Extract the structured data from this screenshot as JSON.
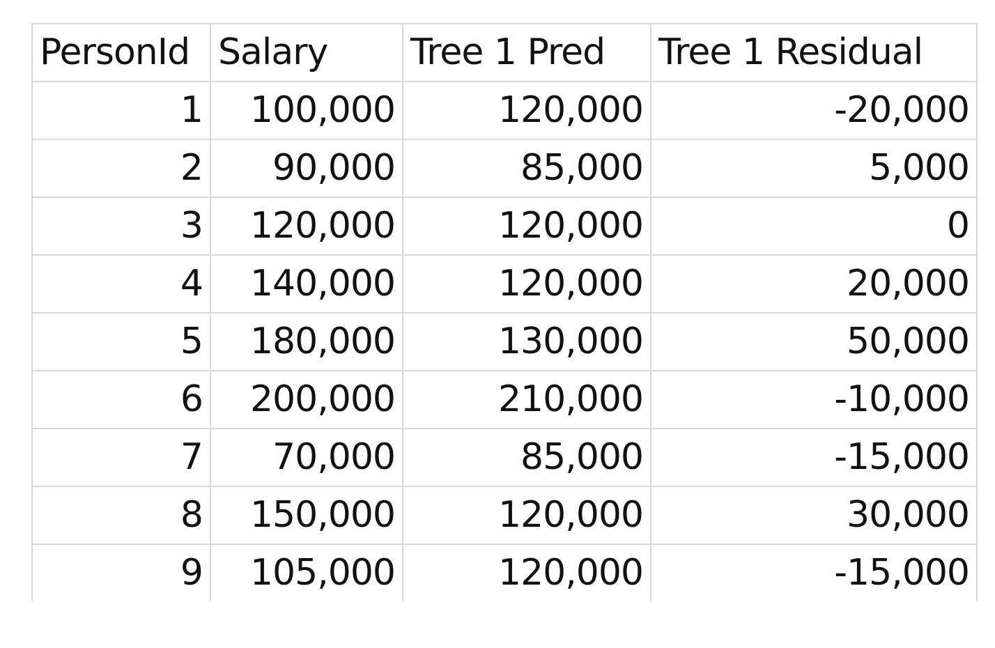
{
  "table": {
    "headers": [
      "PersonId",
      "Salary",
      "Tree 1 Pred",
      "Tree 1 Residual"
    ],
    "rows": [
      [
        "1",
        "100,000",
        "120,000",
        "-20,000"
      ],
      [
        "2",
        "90,000",
        "85,000",
        "5,000"
      ],
      [
        "3",
        "120,000",
        "120,000",
        "0"
      ],
      [
        "4",
        "140,000",
        "120,000",
        "20,000"
      ],
      [
        "5",
        "180,000",
        "130,000",
        "50,000"
      ],
      [
        "6",
        "200,000",
        "210,000",
        "-10,000"
      ],
      [
        "7",
        "70,000",
        "85,000",
        "-15,000"
      ],
      [
        "8",
        "150,000",
        "120,000",
        "30,000"
      ],
      [
        "9",
        "105,000",
        "120,000",
        "-15,000"
      ]
    ]
  },
  "colors": {
    "gridline": "#d9d9d9",
    "text": "#111111",
    "background": "#ffffff"
  }
}
